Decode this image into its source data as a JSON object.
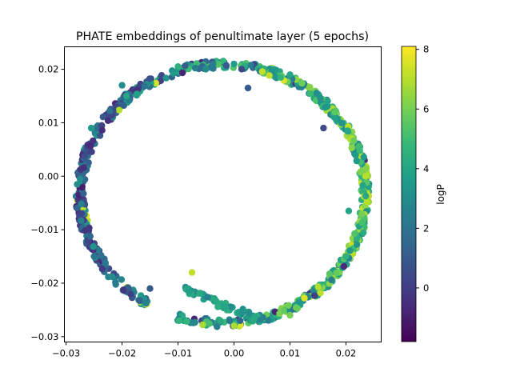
{
  "chart_data": {
    "type": "scatter",
    "title": "PHATE embeddings of penultimate layer (5 epochs)",
    "xlabel": "",
    "ylabel": "",
    "xlim": [
      -0.0303,
      0.0263
    ],
    "ylim": [
      -0.031,
      0.0242
    ],
    "x_ticks": [
      -0.03,
      -0.02,
      -0.01,
      0.0,
      0.01,
      0.02
    ],
    "x_tick_labels": [
      "−0.03",
      "−0.02",
      "−0.01",
      "0.00",
      "0.01",
      "0.02"
    ],
    "y_ticks": [
      0.02,
      0.01,
      0.0,
      -0.01,
      -0.02,
      -0.03
    ],
    "y_tick_labels": [
      "0.02",
      "0.01",
      "0.00",
      "−0.01",
      "−0.02",
      "−0.03"
    ],
    "grid": false,
    "colormap": "viridis",
    "colorbar": {
      "label": "logP",
      "range": [
        -1.8,
        8.1
      ],
      "ticks": [
        0,
        2,
        4,
        6,
        8
      ],
      "tick_labels": [
        "0",
        "2",
        "4",
        "6",
        "8"
      ]
    },
    "description": "Points form a ring of radius ~0.024 centred near (-0.002, -0.003), color-coded by logP",
    "points_sample": [
      {
        "x": -0.0275,
        "y": -0.0005,
        "c": 3.0
      },
      {
        "x": -0.0255,
        "y": 0.009,
        "c": 3.5
      },
      {
        "x": -0.02,
        "y": 0.017,
        "c": 3.0
      },
      {
        "x": -0.01,
        "y": 0.0205,
        "c": 4.5
      },
      {
        "x": 0.0,
        "y": 0.021,
        "c": 3.5
      },
      {
        "x": 0.01,
        "y": 0.019,
        "c": 4.0
      },
      {
        "x": 0.018,
        "y": 0.012,
        "c": 5.5
      },
      {
        "x": 0.0235,
        "y": 0.0,
        "c": 7.0
      },
      {
        "x": 0.02,
        "y": -0.015,
        "c": 4.5
      },
      {
        "x": 0.01,
        "y": -0.026,
        "c": 6.0
      },
      {
        "x": 0.0,
        "y": -0.028,
        "c": 6.8
      },
      {
        "x": -0.0075,
        "y": -0.018,
        "c": 7.2
      },
      {
        "x": -0.015,
        "y": -0.021,
        "c": 1.0
      },
      {
        "x": -0.025,
        "y": -0.015,
        "c": 2.0
      },
      {
        "x": 0.0025,
        "y": 0.0165,
        "c": 1.0
      },
      {
        "x": 0.016,
        "y": 0.009,
        "c": 0.5
      },
      {
        "x": 0.0205,
        "y": -0.0065,
        "c": 4.0
      }
    ]
  }
}
